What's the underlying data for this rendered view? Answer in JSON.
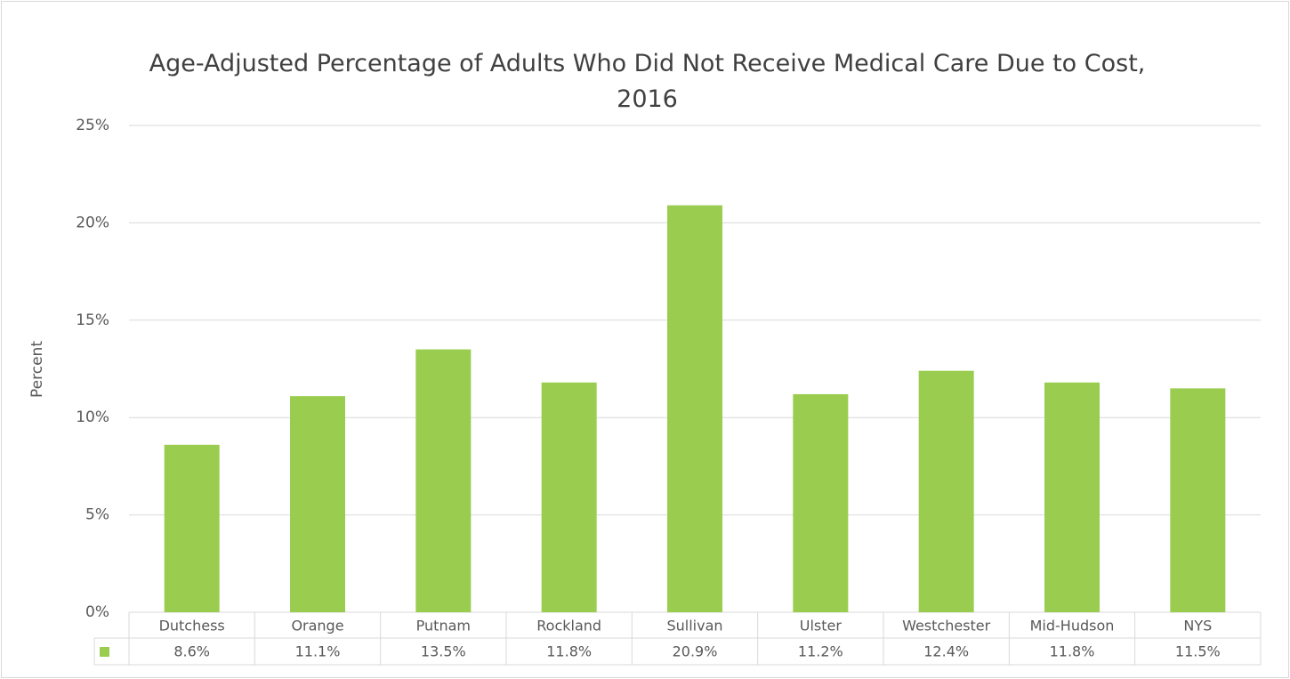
{
  "chart_data": {
    "type": "bar",
    "title": "Age-Adjusted Percentage of Adults Who Did Not Receive Medical Care Due to Cost, 2016",
    "y_label": "Percent",
    "categories": [
      "Dutchess",
      "Orange",
      "Putnam",
      "Rockland",
      "Sullivan",
      "Ulster",
      "Westchester",
      "Mid-Hudson",
      "NYS"
    ],
    "values": [
      8.6,
      11.1,
      13.5,
      11.8,
      20.9,
      11.2,
      12.4,
      11.8,
      11.5
    ],
    "value_labels": [
      "8.6%",
      "11.1%",
      "13.5%",
      "11.8%",
      "20.9%",
      "11.2%",
      "12.4%",
      "11.8%",
      "11.5%"
    ],
    "color": "#9acd4f",
    "ylim": [
      0,
      25
    ],
    "yticks": [
      {
        "value": 0,
        "label": "0%"
      },
      {
        "value": 5,
        "label": "5%"
      },
      {
        "value": 10,
        "label": "10%"
      },
      {
        "value": 15,
        "label": "15%"
      },
      {
        "value": 20,
        "label": "20%"
      },
      {
        "value": 25,
        "label": "25%"
      }
    ],
    "grid": true,
    "data_table": true
  }
}
